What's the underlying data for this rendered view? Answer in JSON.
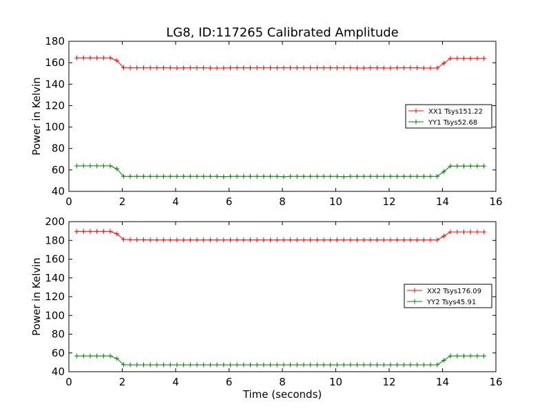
{
  "figure": {
    "title": "LG8, ID:117265 Calibrated Amplitude",
    "xlabel": "Time (seconds)"
  },
  "chart_data": [
    {
      "type": "line",
      "title": "LG8, ID:117265 Calibrated Amplitude",
      "xlabel": "",
      "ylabel": "Power in Kelvin",
      "xlim": [
        0,
        16
      ],
      "ylim": [
        40,
        180
      ],
      "xticks": [
        "0",
        "2",
        "4",
        "6",
        "8",
        "10",
        "12",
        "14",
        "16"
      ],
      "yticks": [
        "40",
        "60",
        "80",
        "100",
        "120",
        "140",
        "160",
        "180"
      ],
      "grid": false,
      "legend": "center-right",
      "x": [
        0.3,
        0.55,
        0.8,
        1.05,
        1.3,
        1.55,
        1.8,
        2.05,
        2.3,
        2.55,
        2.8,
        3.05,
        3.3,
        3.55,
        3.8,
        4.05,
        4.3,
        4.55,
        4.8,
        5.05,
        5.3,
        5.55,
        5.8,
        6.05,
        6.3,
        6.55,
        6.8,
        7.05,
        7.3,
        7.55,
        7.8,
        8.05,
        8.3,
        8.55,
        8.8,
        9.05,
        9.3,
        9.55,
        9.8,
        10.05,
        10.3,
        10.55,
        10.8,
        11.05,
        11.3,
        11.55,
        11.8,
        12.05,
        12.3,
        12.55,
        12.8,
        13.05,
        13.3,
        13.55,
        13.8,
        14.05,
        14.3,
        14.55,
        14.8,
        15.05,
        15.3,
        15.55
      ],
      "series": [
        {
          "name": "XX1 Tsys151.22",
          "color": "#ff0000",
          "values": [
            164.5,
            164.5,
            164.5,
            164.5,
            164.5,
            164.5,
            162,
            155.5,
            155.3,
            155.3,
            155.3,
            155.3,
            155.3,
            155.3,
            155.3,
            155,
            155.2,
            155.3,
            155.3,
            155.3,
            155,
            155,
            155,
            155.3,
            155.3,
            155.3,
            155.3,
            155.3,
            155.3,
            155.3,
            155.3,
            155.3,
            155.3,
            155.3,
            155.3,
            155.3,
            155.3,
            155.3,
            155.3,
            155.3,
            155.3,
            155.3,
            155,
            155,
            155.3,
            155.3,
            155,
            155,
            155.3,
            155.3,
            155.3,
            155.3,
            155,
            155,
            155,
            159.5,
            164,
            164,
            164,
            164,
            164,
            164
          ]
        },
        {
          "name": "YY1 Tsys52.68",
          "color": "#008000",
          "values": [
            63.8,
            63.8,
            63.8,
            63.8,
            63.8,
            63.8,
            61,
            54,
            54,
            54,
            54,
            54,
            54,
            54,
            54,
            54,
            54,
            54,
            54,
            54,
            54,
            54,
            53.6,
            54,
            54,
            54,
            54,
            54,
            54,
            54,
            54,
            53.6,
            54,
            54,
            54,
            54,
            54,
            54,
            54,
            54,
            53.6,
            54,
            54,
            54,
            54,
            54,
            54,
            54,
            54,
            54,
            54,
            54,
            54,
            54,
            54,
            58.5,
            63.6,
            63.6,
            63.6,
            63.6,
            63.6,
            63.6
          ]
        }
      ]
    },
    {
      "type": "line",
      "title": "",
      "xlabel": "Time (seconds)",
      "ylabel": "Power in Kelvin",
      "xlim": [
        0,
        16
      ],
      "ylim": [
        40,
        200
      ],
      "xticks": [
        "0",
        "2",
        "4",
        "6",
        "8",
        "10",
        "12",
        "14",
        "16"
      ],
      "yticks": [
        "40",
        "60",
        "80",
        "100",
        "120",
        "140",
        "160",
        "180",
        "200"
      ],
      "grid": false,
      "legend": "center-right",
      "x": [
        0.3,
        0.55,
        0.8,
        1.05,
        1.3,
        1.55,
        1.8,
        2.05,
        2.3,
        2.55,
        2.8,
        3.05,
        3.3,
        3.55,
        3.8,
        4.05,
        4.3,
        4.55,
        4.8,
        5.05,
        5.3,
        5.55,
        5.8,
        6.05,
        6.3,
        6.55,
        6.8,
        7.05,
        7.3,
        7.55,
        7.8,
        8.05,
        8.3,
        8.55,
        8.8,
        9.05,
        9.3,
        9.55,
        9.8,
        10.05,
        10.3,
        10.55,
        10.8,
        11.05,
        11.3,
        11.55,
        11.8,
        12.05,
        12.3,
        12.55,
        12.8,
        13.05,
        13.3,
        13.55,
        13.8,
        14.05,
        14.3,
        14.55,
        14.8,
        15.05,
        15.3,
        15.55
      ],
      "series": [
        {
          "name": "XX2 Tsys176.09",
          "color": "#ff0000",
          "values": [
            189.5,
            189.5,
            189.5,
            189.5,
            189.5,
            189.5,
            187,
            181,
            180.7,
            180.6,
            180.6,
            180.5,
            180.5,
            180.5,
            180.5,
            180.4,
            180.4,
            180.5,
            180.5,
            180.5,
            180.5,
            180.5,
            180.5,
            180.5,
            180.5,
            180.5,
            180.5,
            180.5,
            180.5,
            180.5,
            180.5,
            180.5,
            180.5,
            180.5,
            180.5,
            180.5,
            180.5,
            180.5,
            180.5,
            180.5,
            180.5,
            180.5,
            180.5,
            180.5,
            180.5,
            180.5,
            180.5,
            180.5,
            180.5,
            180.5,
            180.5,
            180.5,
            180.5,
            180.5,
            180.5,
            184.5,
            189,
            189,
            189,
            189,
            189,
            189
          ]
        },
        {
          "name": "YY2 Tsys45.91",
          "color": "#008000",
          "values": [
            56.8,
            56.8,
            56.8,
            56.8,
            56.8,
            56.8,
            54,
            47.5,
            47.3,
            47.3,
            47.3,
            47.3,
            47.3,
            47.3,
            47.3,
            47.3,
            47.3,
            47.3,
            47.3,
            47.3,
            47.3,
            47.3,
            47.3,
            47.3,
            47.3,
            47.3,
            47.3,
            47.3,
            47.3,
            47.3,
            47.3,
            47.3,
            47.3,
            47.3,
            47.3,
            47.3,
            47.3,
            47.3,
            47.3,
            47.3,
            47.3,
            47.3,
            47.3,
            47.3,
            47.3,
            47.3,
            47.3,
            47.3,
            47.3,
            47.3,
            47.3,
            47.3,
            47.3,
            47.3,
            47.3,
            52,
            56.8,
            56.8,
            56.8,
            56.8,
            56.8,
            56.8
          ]
        }
      ]
    }
  ]
}
